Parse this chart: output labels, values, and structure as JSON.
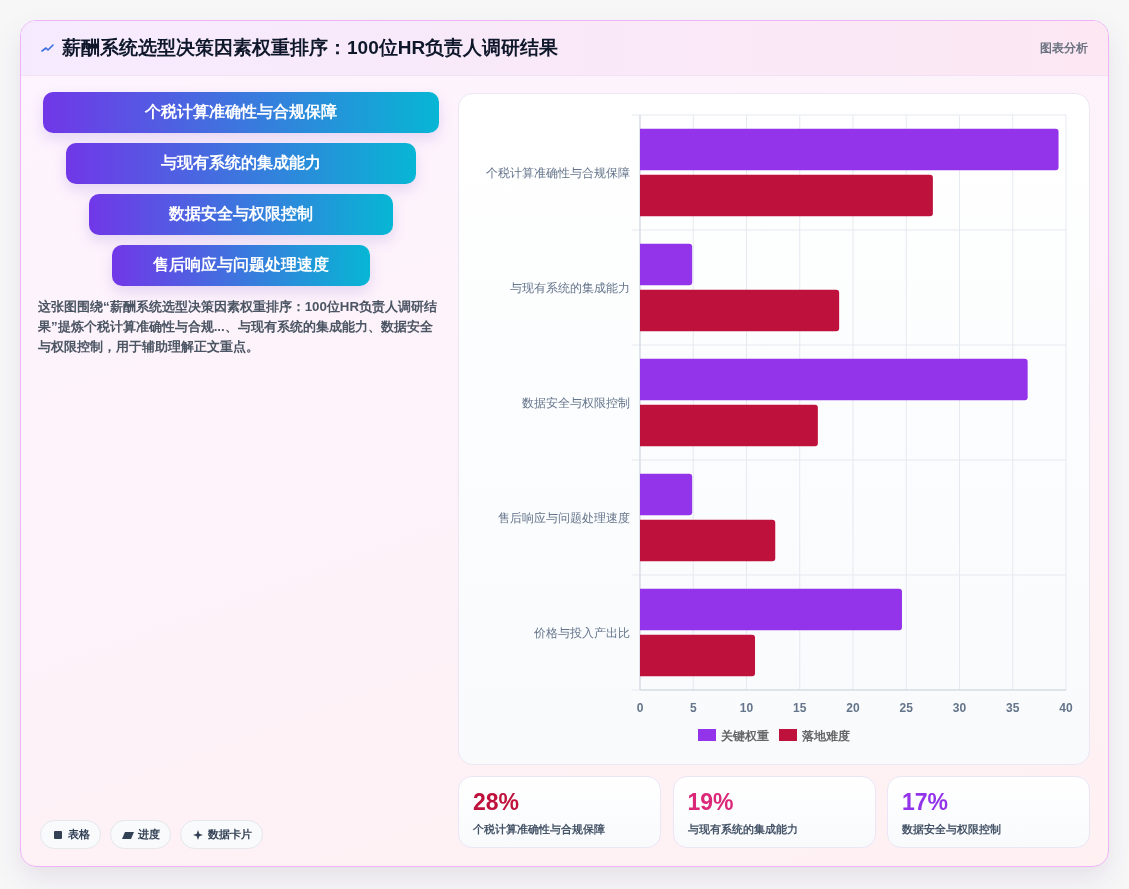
{
  "chart_data": [
    {
      "type": "other",
      "title": "薪酬系统选型决策因素权重排序：100位HR负责人调研结果",
      "categories": [
        "个税计算准确性与合规保障",
        "与现有系统的集成能力",
        "数据安全与权限控制",
        "售后响应与问题处理速度"
      ],
      "annotations": [
        "图表分析",
        "这张图围绕“薪酬系统选型决策因素权重排序：100位HR负责人调研结果”提炼个税计算准确性与合规...、与现有系统的集成能力、数据安全与权限控制，用于辅助理解正文重点。",
        "表格",
        "进度",
        "数据卡片"
      ]
    },
    {
      "type": "bar",
      "orientation": "horizontal",
      "categories": [
        "个税计算准确性与合规保障",
        "与现有系统的集成能力",
        "数据安全与权限控制",
        "售后响应与问题处理速度",
        "价格与投入产出比"
      ],
      "series": [
        {
          "name": "关键权重",
          "color": "#9333ea",
          "values": [
            39.3,
            4.9,
            36.4,
            4.9,
            24.6
          ]
        },
        {
          "name": "落地难度",
          "color": "#be123c",
          "values": [
            27.5,
            18.7,
            16.7,
            12.7,
            10.8
          ]
        }
      ],
      "xlim": [
        0,
        40
      ],
      "xticks": [
        0,
        5,
        10,
        15,
        20,
        25,
        30,
        35,
        40
      ],
      "grid": true,
      "legend": "bottom"
    },
    {
      "type": "other",
      "categories": [
        "个税计算准确性与合规保障",
        "与现有系统的集成能力",
        "数据安全与权限控制"
      ],
      "annotations": [
        "28%",
        "19%",
        "17%"
      ]
    }
  ]
}
